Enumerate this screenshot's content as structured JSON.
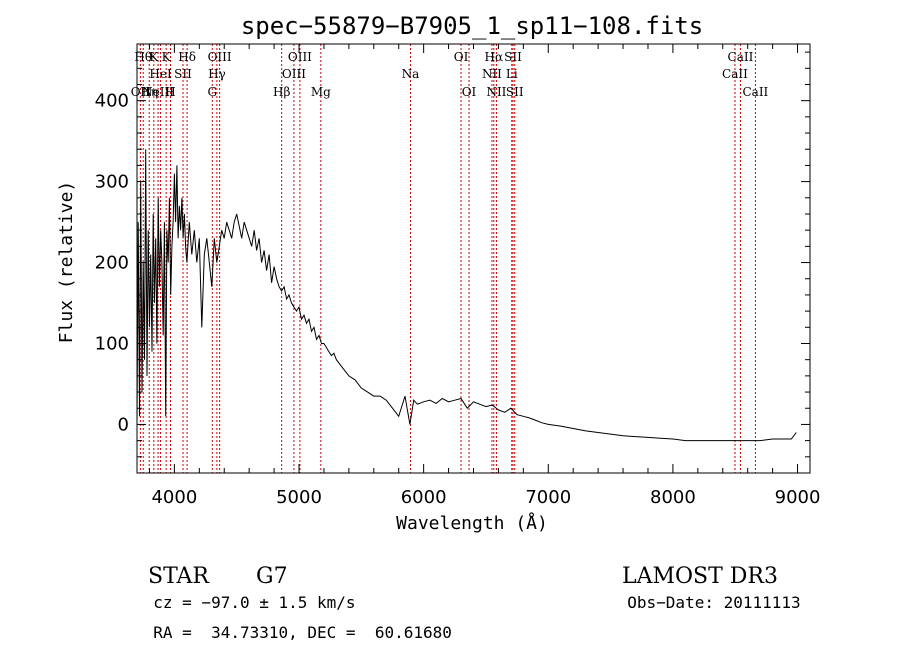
{
  "chart_data": {
    "type": "line",
    "title": "spec−55879−B7905_1_sp11−108.fits",
    "xlabel": "Wavelength (Å)",
    "ylabel": "Flux (relative)",
    "xlim": [
      3700,
      9100
    ],
    "ylim": [
      -60,
      470
    ],
    "xticks": [
      4000,
      5000,
      6000,
      7000,
      8000,
      9000
    ],
    "yticks": [
      0,
      100,
      200,
      300,
      400
    ],
    "grid": false,
    "series": [
      {
        "name": "spectrum",
        "x": [
          3700,
          3710,
          3720,
          3730,
          3740,
          3750,
          3760,
          3770,
          3780,
          3790,
          3800,
          3810,
          3820,
          3830,
          3840,
          3850,
          3860,
          3870,
          3880,
          3890,
          3900,
          3910,
          3920,
          3930,
          3940,
          3950,
          3960,
          3970,
          3980,
          3990,
          4000,
          4010,
          4020,
          4030,
          4040,
          4050,
          4060,
          4070,
          4080,
          4090,
          4100,
          4120,
          4140,
          4160,
          4180,
          4200,
          4220,
          4240,
          4260,
          4280,
          4300,
          4320,
          4340,
          4360,
          4380,
          4400,
          4420,
          4440,
          4460,
          4480,
          4500,
          4520,
          4540,
          4560,
          4580,
          4600,
          4620,
          4640,
          4660,
          4680,
          4700,
          4720,
          4740,
          4760,
          4780,
          4800,
          4820,
          4840,
          4860,
          4880,
          4900,
          4920,
          4940,
          4960,
          4980,
          5000,
          5020,
          5040,
          5060,
          5080,
          5100,
          5120,
          5140,
          5160,
          5180,
          5200,
          5220,
          5240,
          5260,
          5280,
          5300,
          5350,
          5400,
          5450,
          5500,
          5550,
          5600,
          5650,
          5700,
          5750,
          5800,
          5850,
          5890,
          5920,
          5950,
          6000,
          6050,
          6100,
          6150,
          6200,
          6250,
          6300,
          6350,
          6400,
          6450,
          6500,
          6550,
          6600,
          6650,
          6700,
          6750,
          6800,
          6850,
          6900,
          6950,
          7000,
          7100,
          7200,
          7300,
          7400,
          7500,
          7600,
          7700,
          7800,
          7900,
          8000,
          8100,
          8200,
          8300,
          8400,
          8500,
          8600,
          8700,
          8800,
          8900,
          8950,
          8990
        ],
        "values": [
          0,
          250,
          10,
          300,
          40,
          200,
          80,
          340,
          60,
          240,
          120,
          210,
          90,
          260,
          150,
          230,
          100,
          280,
          170,
          240,
          200,
          110,
          250,
          10,
          240,
          200,
          280,
          160,
          220,
          250,
          310,
          250,
          320,
          230,
          270,
          240,
          280,
          230,
          260,
          220,
          200,
          250,
          210,
          240,
          200,
          230,
          120,
          210,
          230,
          200,
          170,
          230,
          200,
          220,
          240,
          230,
          250,
          240,
          230,
          250,
          260,
          245,
          230,
          250,
          240,
          230,
          220,
          240,
          215,
          230,
          200,
          215,
          190,
          210,
          175,
          195,
          180,
          170,
          165,
          170,
          155,
          160,
          150,
          145,
          140,
          145,
          130,
          135,
          125,
          130,
          115,
          120,
          105,
          110,
          100,
          100,
          95,
          90,
          85,
          88,
          80,
          70,
          60,
          55,
          45,
          40,
          35,
          35,
          30,
          20,
          10,
          35,
          0,
          30,
          25,
          28,
          30,
          26,
          32,
          28,
          30,
          32,
          20,
          28,
          25,
          22,
          24,
          18,
          15,
          20,
          12,
          10,
          8,
          5,
          2,
          0,
          -2,
          -5,
          -8,
          -10,
          -12,
          -14,
          -15,
          -16,
          -17,
          -18,
          -20,
          -20,
          -20,
          -20,
          -20,
          -20,
          -20,
          -18,
          -18,
          -18,
          -10
        ]
      }
    ],
    "lines": [
      {
        "wave": 3727,
        "label": "OII",
        "row": 3
      },
      {
        "wave": 3750,
        "label": "Hθ",
        "row": 1
      },
      {
        "wave": 3798,
        "label": "Hη",
        "row": 3
      },
      {
        "wave": 3835,
        "label": "K",
        "row": 1
      },
      {
        "wave": 3869,
        "label": "NeIII",
        "row": 3
      },
      {
        "wave": 3889,
        "label": "HeI",
        "row": 2
      },
      {
        "wave": 3934,
        "label": "K",
        "row": 1
      },
      {
        "wave": 3969,
        "label": "H",
        "row": 3
      },
      {
        "wave": 4069,
        "label": "SII",
        "row": 2
      },
      {
        "wave": 4102,
        "label": "Hδ",
        "row": 1
      },
      {
        "wave": 4304,
        "label": "G",
        "row": 3
      },
      {
        "wave": 4341,
        "label": "Hγ",
        "row": 2
      },
      {
        "wave": 4363,
        "label": "OIII",
        "row": 1
      },
      {
        "wave": 4861,
        "label": "Hβ",
        "row": 3
      },
      {
        "wave": 4959,
        "label": "OIII",
        "row": 2
      },
      {
        "wave": 5007,
        "label": "OIII",
        "row": 1
      },
      {
        "wave": 5175,
        "label": "Mg",
        "row": 3
      },
      {
        "wave": 5894,
        "label": "Na",
        "row": 2
      },
      {
        "wave": 6300,
        "label": "OI",
        "row": 1
      },
      {
        "wave": 6364,
        "label": "OI",
        "row": 3
      },
      {
        "wave": 6548,
        "label": "NII",
        "row": 2
      },
      {
        "wave": 6563,
        "label": "Hα",
        "row": 1
      },
      {
        "wave": 6584,
        "label": "NII",
        "row": 3
      },
      {
        "wave": 6707,
        "label": "Li",
        "row": 2
      },
      {
        "wave": 6717,
        "label": "SII",
        "row": 1
      },
      {
        "wave": 6731,
        "label": "SII",
        "row": 3
      },
      {
        "wave": 8498,
        "label": "CaII",
        "row": 2
      },
      {
        "wave": 8542,
        "label": "CaII",
        "row": 1
      },
      {
        "wave": 8662,
        "label": "CaII",
        "row": 3
      }
    ],
    "annotations": {
      "class": "STAR",
      "subclass": "G7",
      "survey": "LAMOST DR3",
      "cz": "cz = −97.0 ± 1.5 km/s",
      "obs_date": "Obs−Date: 20111113",
      "coords": "RA =  34.73310, DEC =  60.61680"
    }
  }
}
